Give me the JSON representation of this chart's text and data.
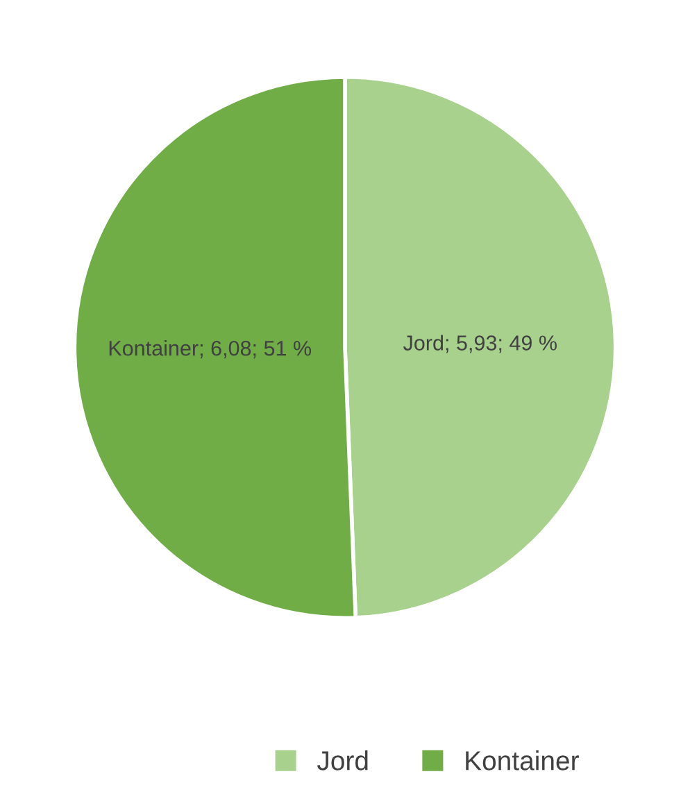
{
  "chart_data": {
    "type": "pie",
    "categories": [
      "Jord",
      "Kontainer"
    ],
    "values": [
      5.93,
      6.08
    ],
    "colors": [
      "#a9d18e",
      "#70ad47"
    ],
    "value_labels": [
      "Jord; 5,93; 49 %",
      "Kontainer; 6,08; 51 %"
    ],
    "legend": "bottom"
  }
}
